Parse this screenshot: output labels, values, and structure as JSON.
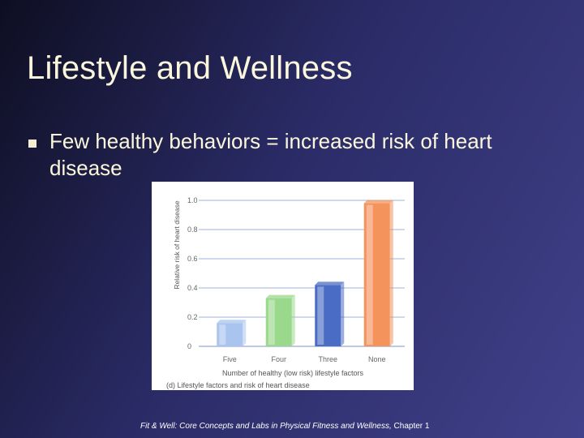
{
  "slide": {
    "title": "Lifestyle and Wellness",
    "bullet": "Few healthy behaviors = increased risk of heart disease",
    "footer": {
      "italic": "Fit & Well: Core Concepts and Labs in Physical Fitness and Wellness,",
      "plain": " Chapter 1"
    }
  },
  "chart_data": {
    "type": "bar",
    "categories": [
      "Five",
      "Four",
      "Three",
      "None"
    ],
    "values": [
      0.16,
      0.33,
      0.42,
      0.98
    ],
    "bar_colors": [
      "#a9c4ee",
      "#9ad88c",
      "#4a6cc4",
      "#f4935c"
    ],
    "xlabel": "Number of healthy (low risk) lifestyle factors",
    "ylabel": "Relative risk of heart disease",
    "yticks": [
      "0",
      "0.2",
      "0.4",
      "0.6",
      "0.8",
      "1.0"
    ],
    "ylim": [
      0,
      1.0
    ],
    "caption": "(d) Lifestyle factors and risk of heart disease",
    "grid": true
  }
}
